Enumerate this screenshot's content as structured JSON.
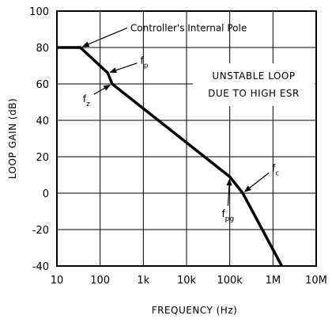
{
  "chart_data": {
    "type": "line",
    "xlabel": "FREQUENCY (Hz)",
    "ylabel": "LOOP GAIN (dB)",
    "x_scale": "log",
    "xlim": [
      10,
      10000000
    ],
    "ylim": [
      -40,
      100
    ],
    "grid": true,
    "x_ticks": [
      {
        "value": 10,
        "label": "10"
      },
      {
        "value": 100,
        "label": "100"
      },
      {
        "value": 1000,
        "label": "1k"
      },
      {
        "value": 10000,
        "label": "10k"
      },
      {
        "value": 100000,
        "label": "100k"
      },
      {
        "value": 1000000,
        "label": "1M"
      },
      {
        "value": 10000000,
        "label": "10M"
      }
    ],
    "y_ticks": [
      {
        "value": 100,
        "label": "100"
      },
      {
        "value": 80,
        "label": "80"
      },
      {
        "value": 60,
        "label": "60"
      },
      {
        "value": 40,
        "label": "40"
      },
      {
        "value": 20,
        "label": "20"
      },
      {
        "value": 0,
        "label": "0"
      },
      {
        "value": -20,
        "label": "-20"
      },
      {
        "value": -40,
        "label": "-40"
      }
    ],
    "series": [
      {
        "points": [
          {
            "x": 10,
            "y": 80
          },
          {
            "x": 35,
            "y": 80
          },
          {
            "x": 150,
            "y": 66
          },
          {
            "x": 190,
            "y": 60
          },
          {
            "x": 100000,
            "y": 9
          },
          {
            "x": 200000,
            "y": 0
          },
          {
            "x": 1600000,
            "y": -40
          }
        ]
      }
    ],
    "annotations": [
      {
        "id": "pole",
        "main": "Controller's Internal Pole",
        "sub": "",
        "text_x": 500,
        "text_y": 89,
        "arrow_x": 35,
        "arrow_y": 80
      },
      {
        "id": "fp",
        "main": "f",
        "sub": "p",
        "text_x": 850,
        "text_y": 71,
        "arrow_x": 150,
        "arrow_y": 66
      },
      {
        "id": "fz",
        "main": "f",
        "sub": "z",
        "text_x": 40,
        "text_y": 50,
        "arrow_x": 190,
        "arrow_y": 60
      },
      {
        "id": "fpg",
        "main": "f",
        "sub": "pg",
        "text_x": 65000,
        "text_y": -13,
        "arrow_x": 100000,
        "arrow_y": 9
      },
      {
        "id": "fc",
        "main": "f",
        "sub": "c",
        "text_x": 950000,
        "text_y": 12,
        "arrow_x": 200000,
        "arrow_y": 0
      }
    ],
    "text_box": {
      "lines": [
        "UNSTABLE LOOP",
        "DUE TO HIGH ESR"
      ]
    }
  }
}
